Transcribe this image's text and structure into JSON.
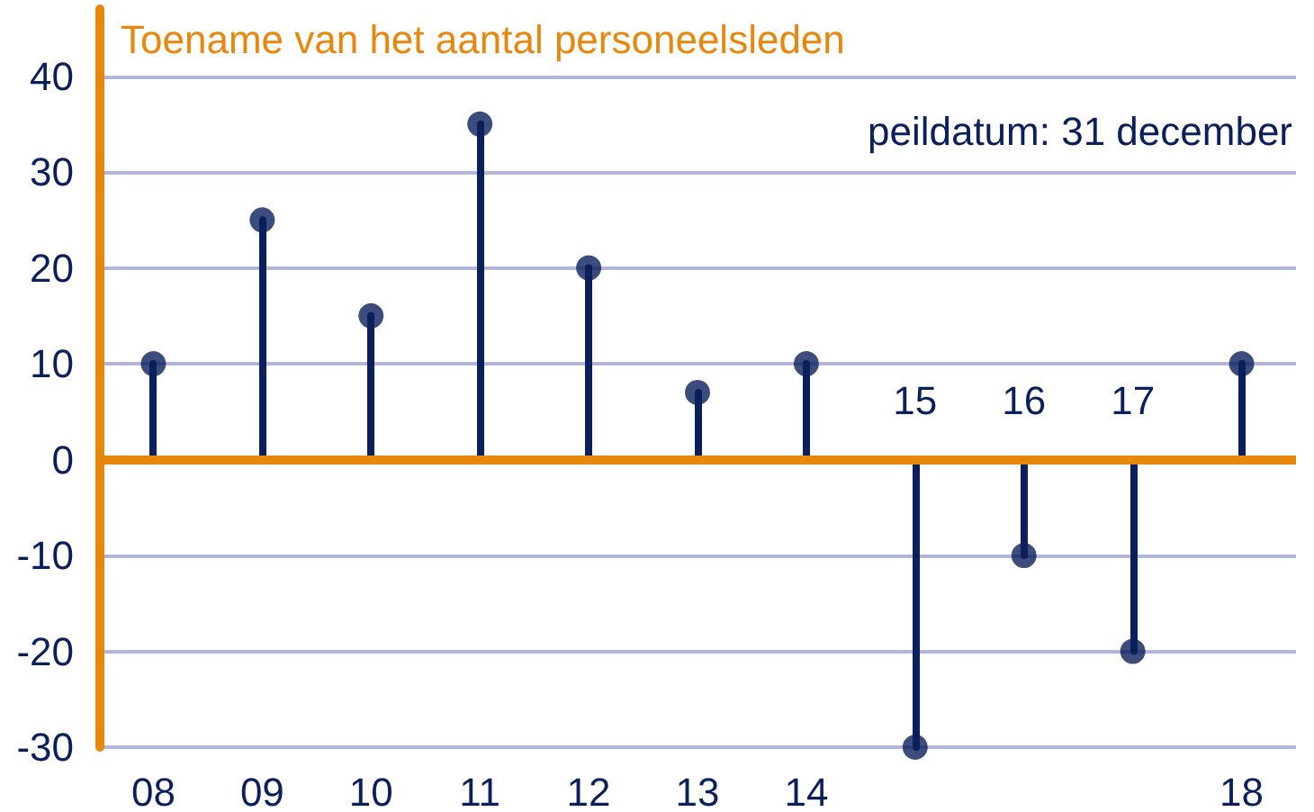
{
  "chart_data": {
    "type": "lollipop",
    "title": "Toename van het aantal personeelsleden",
    "annotations": [
      "peildatum: 31 december"
    ],
    "categories": [
      "08",
      "09",
      "10",
      "11",
      "12",
      "13",
      "14",
      "15",
      "16",
      "17",
      "18"
    ],
    "values": [
      10,
      25,
      15,
      35,
      20,
      7,
      10,
      -30,
      -10,
      -20,
      10
    ],
    "color": "#0b1f5b",
    "ylim": [
      -30,
      47
    ],
    "yticks": [
      -30,
      -20,
      -10,
      0,
      10,
      20,
      30,
      40
    ],
    "grid": "y",
    "marker": "circle",
    "ref_lines": [
      {
        "axis": "y",
        "value": 0,
        "color": "#e8870e"
      }
    ]
  }
}
